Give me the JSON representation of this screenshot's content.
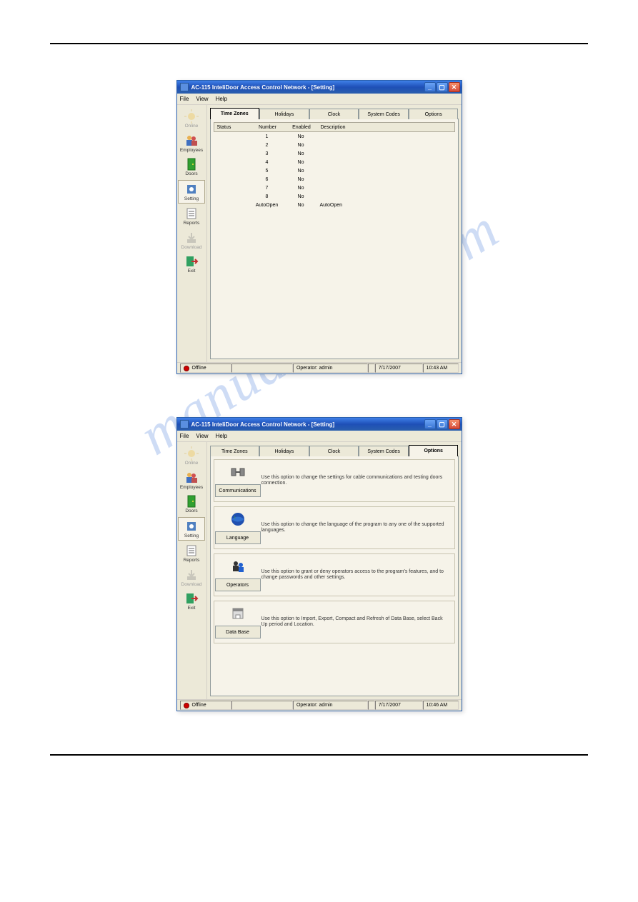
{
  "watermark_text": "manualshive.com",
  "app": {
    "title": "AC-115 InteliDoor Access Control Network - [Setting]",
    "menus": [
      "File",
      "View",
      "Help"
    ],
    "sidebar": [
      {
        "key": "online",
        "label": "Online",
        "enabled": false,
        "icon": "sun"
      },
      {
        "key": "employees",
        "label": "Employees",
        "enabled": true,
        "icon": "people"
      },
      {
        "key": "doors",
        "label": "Doors",
        "enabled": true,
        "icon": "door"
      },
      {
        "key": "setting",
        "label": "Setting",
        "enabled": true,
        "icon": "gear",
        "active": true
      },
      {
        "key": "reports",
        "label": "Reports",
        "enabled": true,
        "icon": "report"
      },
      {
        "key": "download",
        "label": "Download",
        "enabled": false,
        "icon": "download"
      },
      {
        "key": "exit",
        "label": "Exit",
        "enabled": true,
        "icon": "exit"
      }
    ],
    "tabs": [
      "Time Zones",
      "Holidays",
      "Clock",
      "System Codes",
      "Options"
    ]
  },
  "screenshot1": {
    "active_tab": "Time Zones",
    "columns": [
      "Status",
      "Number",
      "Enabled",
      "Description"
    ],
    "rows": [
      {
        "status": "",
        "number": "1",
        "enabled": "No",
        "desc": ""
      },
      {
        "status": "",
        "number": "2",
        "enabled": "No",
        "desc": ""
      },
      {
        "status": "",
        "number": "3",
        "enabled": "No",
        "desc": ""
      },
      {
        "status": "",
        "number": "4",
        "enabled": "No",
        "desc": ""
      },
      {
        "status": "",
        "number": "5",
        "enabled": "No",
        "desc": ""
      },
      {
        "status": "",
        "number": "6",
        "enabled": "No",
        "desc": ""
      },
      {
        "status": "",
        "number": "7",
        "enabled": "No",
        "desc": ""
      },
      {
        "status": "",
        "number": "8",
        "enabled": "No",
        "desc": ""
      },
      {
        "status": "",
        "number": "AutoOpen",
        "enabled": "No",
        "desc": "AutoOpen"
      }
    ],
    "status": {
      "state": "Offline",
      "operator": "Operator: admin",
      "date": "7/17/2007",
      "time": "10:43 AM"
    }
  },
  "screenshot2": {
    "active_tab": "Options",
    "options": [
      {
        "key": "comm",
        "button": "Communications",
        "desc": "Use this option to change the settings for cable communications and testing doors connection."
      },
      {
        "key": "lang",
        "button": "Language",
        "desc": "Use this option to change the language of the program to any one of the supported languages."
      },
      {
        "key": "ops",
        "button": "Operators",
        "desc": "Use this option to grant or deny operators access to the program's features, and to change passwords and other settings."
      },
      {
        "key": "db",
        "button": "Data Base",
        "desc": "Use this option to Import, Export, Compact and Refresh of Data Base, select Back Up period and Location."
      }
    ],
    "status": {
      "state": "Offline",
      "operator": "Operator: admin",
      "date": "7/17/2007",
      "time": "10:46 AM"
    }
  },
  "colors": {
    "titlebar_top": "#3f80e8",
    "titlebar_bot": "#2a5fad",
    "close_btn": "#d44a3a",
    "bg": "#ece9d8",
    "panel": "#f6f3e9",
    "border": "#919b9c",
    "led": "#c00"
  }
}
